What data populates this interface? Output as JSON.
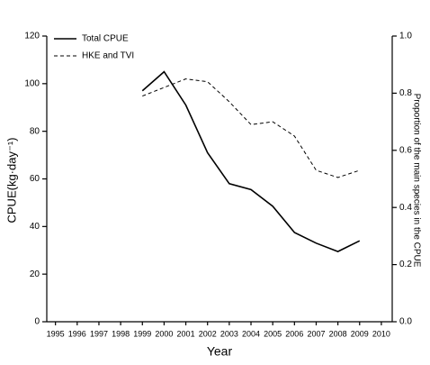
{
  "chart_data": {
    "type": "line",
    "x_label": "Year",
    "y_label": "CPUE(kg·day⁻¹)",
    "y2_label": "Proportion of the main species in the CPUE",
    "x": [
      1999,
      2000,
      2001,
      2002,
      2003,
      2004,
      2005,
      2006,
      2007,
      2008,
      2009
    ],
    "series": [
      {
        "name": "Total CPUE",
        "color": "#000000",
        "dash": "solid",
        "values": [
          97,
          105,
          91,
          71,
          58,
          55.5,
          48.5,
          37.5,
          33,
          29.5,
          34
        ]
      },
      {
        "name": "HKE and TVI",
        "color": "#000000",
        "dash": "dashed",
        "axis": "y2",
        "values": [
          0.79,
          0.82,
          0.85,
          0.84,
          0.77,
          0.69,
          0.7,
          0.65,
          0.53,
          0.505,
          0.53
        ]
      }
    ],
    "xlim": [
      1994.6,
      2010.5
    ],
    "xticks": [
      1995,
      1996,
      1997,
      1998,
      1999,
      2000,
      2001,
      2002,
      2003,
      2004,
      2005,
      2006,
      2007,
      2008,
      2009,
      2010
    ],
    "ylim": [
      0,
      120
    ],
    "yticks": [
      0,
      20,
      40,
      60,
      80,
      100,
      120
    ],
    "y2lim": [
      0,
      1
    ],
    "y2ticks": [
      {
        "value": 0,
        "label": "0.0"
      },
      {
        "value": 0.2,
        "label": "0.2"
      },
      {
        "value": 0.4,
        "label": "0.4"
      },
      {
        "value": 0.6,
        "label": "0.6"
      },
      {
        "value": 0.8,
        "label": "0.8"
      },
      {
        "value": 1,
        "label": "1.0"
      }
    ],
    "legend": "top-left",
    "grid": false
  }
}
